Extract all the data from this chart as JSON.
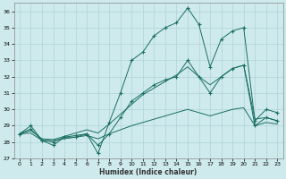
{
  "xlabel": "Humidex (Indice chaleur)",
  "background_color": "#ceeaed",
  "grid_color": "#aed4d8",
  "line_color": "#1a6e62",
  "xlim": [
    0,
    23
  ],
  "ylim": [
    27,
    36.5
  ],
  "yticks": [
    27,
    28,
    29,
    30,
    31,
    32,
    33,
    34,
    35,
    36
  ],
  "xticks": [
    0,
    1,
    2,
    3,
    4,
    5,
    6,
    7,
    8,
    9,
    10,
    11,
    12,
    13,
    14,
    15,
    16,
    17,
    18,
    19,
    20,
    21,
    22,
    23
  ],
  "series": {
    "max_line": [
      28.5,
      29.0,
      28.1,
      27.8,
      28.3,
      28.4,
      28.5,
      27.3,
      29.2,
      31.0,
      33.0,
      33.5,
      34.5,
      35.0,
      35.3,
      36.2,
      35.2,
      32.6,
      34.3,
      34.8,
      35.0,
      29.3,
      30.0,
      29.8
    ],
    "mid_line": [
      28.5,
      28.8,
      28.1,
      28.0,
      28.3,
      28.3,
      28.5,
      27.8,
      28.5,
      29.5,
      30.5,
      31.0,
      31.5,
      31.8,
      32.0,
      33.0,
      32.0,
      31.0,
      32.0,
      32.5,
      32.7,
      29.0,
      29.5,
      29.3
    ],
    "smooth1": [
      28.5,
      28.7,
      28.2,
      28.15,
      28.35,
      28.55,
      28.75,
      28.55,
      29.1,
      29.7,
      30.3,
      30.9,
      31.3,
      31.7,
      32.1,
      32.6,
      32.0,
      31.5,
      32.0,
      32.5,
      32.7,
      29.4,
      29.5,
      29.3
    ],
    "smooth2": [
      28.5,
      28.55,
      28.1,
      28.1,
      28.2,
      28.3,
      28.4,
      28.2,
      28.5,
      28.75,
      29.0,
      29.2,
      29.4,
      29.6,
      29.8,
      30.0,
      29.8,
      29.6,
      29.8,
      30.0,
      30.1,
      29.0,
      29.2,
      29.1
    ]
  }
}
